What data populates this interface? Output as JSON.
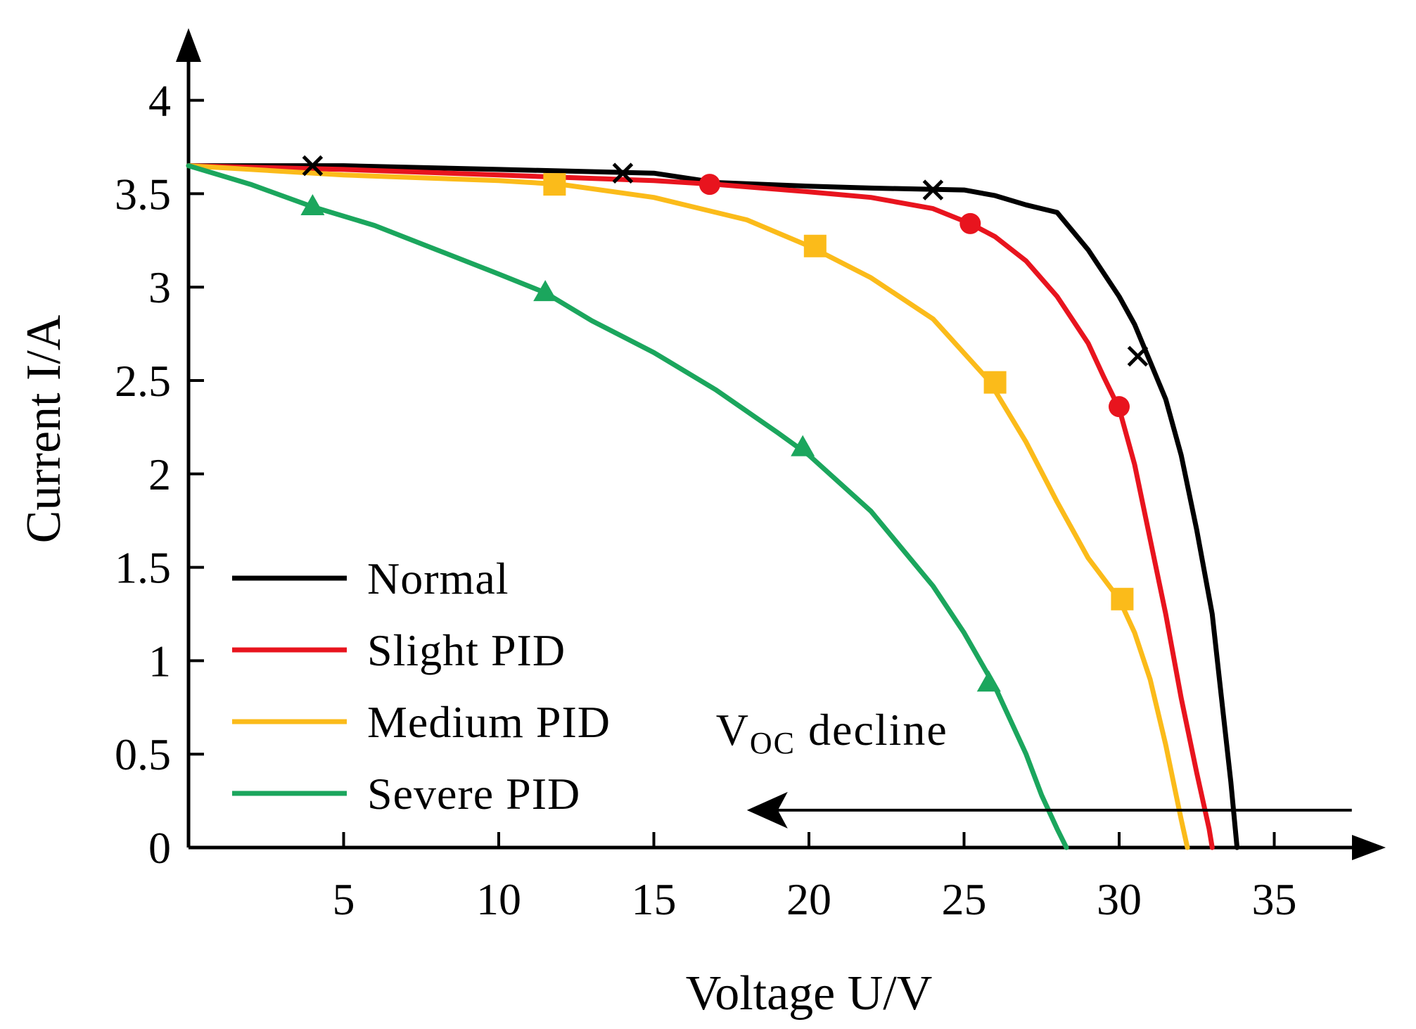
{
  "chart_data": {
    "type": "line",
    "title": "",
    "xlabel": "Voltage U/V",
    "ylabel": "Current I/A",
    "xlim": [
      0,
      38
    ],
    "ylim": [
      0,
      4.3
    ],
    "xticks": [
      5,
      10,
      15,
      20,
      25,
      30,
      35
    ],
    "xtick_labels": [
      "5",
      "10",
      "15",
      "20",
      "25",
      "30",
      "35"
    ],
    "yticks": [
      0,
      0.5,
      1,
      1.5,
      2,
      2.5,
      3,
      3.5,
      4
    ],
    "ytick_labels": [
      "0",
      "0.5",
      "1",
      "1.5",
      "2",
      "2.5",
      "3",
      "3.5",
      "4"
    ],
    "grid": false,
    "legend_position": "bottom-left",
    "series": [
      {
        "name": "Normal",
        "color": "#000000",
        "marker": "x",
        "points": [
          [
            0,
            3.65
          ],
          [
            5,
            3.65
          ],
          [
            10,
            3.63
          ],
          [
            15,
            3.61
          ],
          [
            17,
            3.56
          ],
          [
            20,
            3.54
          ],
          [
            22,
            3.53
          ],
          [
            25,
            3.52
          ],
          [
            26,
            3.49
          ],
          [
            27,
            3.44
          ],
          [
            28,
            3.4
          ],
          [
            29,
            3.2
          ],
          [
            30,
            2.95
          ],
          [
            30.5,
            2.8
          ],
          [
            31,
            2.6
          ],
          [
            31.5,
            2.4
          ],
          [
            32,
            2.1
          ],
          [
            32.5,
            1.7
          ],
          [
            33,
            1.25
          ],
          [
            33.3,
            0.8
          ],
          [
            33.6,
            0.35
          ],
          [
            33.8,
            0.0
          ]
        ],
        "markers": [
          [
            4,
            3.65
          ],
          [
            14,
            3.61
          ],
          [
            24,
            3.52
          ],
          [
            30.6,
            2.63
          ]
        ]
      },
      {
        "name": "Slight PID",
        "color": "#e8141e",
        "marker": "circle",
        "points": [
          [
            0,
            3.65
          ],
          [
            5,
            3.63
          ],
          [
            10,
            3.6
          ],
          [
            15,
            3.57
          ],
          [
            17,
            3.55
          ],
          [
            20,
            3.51
          ],
          [
            22,
            3.48
          ],
          [
            24,
            3.42
          ],
          [
            25.2,
            3.34
          ],
          [
            26,
            3.27
          ],
          [
            27,
            3.14
          ],
          [
            28,
            2.95
          ],
          [
            29,
            2.7
          ],
          [
            29.5,
            2.52
          ],
          [
            30,
            2.35
          ],
          [
            30.5,
            2.05
          ],
          [
            31,
            1.65
          ],
          [
            31.5,
            1.25
          ],
          [
            32,
            0.8
          ],
          [
            32.5,
            0.4
          ],
          [
            32.9,
            0.1
          ],
          [
            33,
            0.0
          ]
        ],
        "markers": [
          [
            16.8,
            3.55
          ],
          [
            25.2,
            3.34
          ],
          [
            30,
            2.36
          ]
        ]
      },
      {
        "name": "Medium PID",
        "color": "#fbbb1a",
        "marker": "square",
        "points": [
          [
            0,
            3.65
          ],
          [
            5,
            3.6
          ],
          [
            10,
            3.57
          ],
          [
            12,
            3.55
          ],
          [
            15,
            3.48
          ],
          [
            18,
            3.36
          ],
          [
            20,
            3.22
          ],
          [
            22,
            3.05
          ],
          [
            24,
            2.83
          ],
          [
            25.8,
            2.5
          ],
          [
            27,
            2.17
          ],
          [
            28,
            1.85
          ],
          [
            29,
            1.55
          ],
          [
            30,
            1.33
          ],
          [
            30.5,
            1.15
          ],
          [
            31,
            0.9
          ],
          [
            31.5,
            0.55
          ],
          [
            32,
            0.15
          ],
          [
            32.2,
            0.0
          ]
        ],
        "markers": [
          [
            11.8,
            3.55
          ],
          [
            20.2,
            3.22
          ],
          [
            26,
            2.49
          ],
          [
            30.1,
            1.33
          ]
        ]
      },
      {
        "name": "Severe PID",
        "color": "#1ba65d",
        "marker": "triangle",
        "points": [
          [
            0,
            3.65
          ],
          [
            2,
            3.55
          ],
          [
            4,
            3.43
          ],
          [
            6,
            3.33
          ],
          [
            8,
            3.2
          ],
          [
            10,
            3.07
          ],
          [
            11.5,
            2.97
          ],
          [
            13,
            2.82
          ],
          [
            15,
            2.65
          ],
          [
            17,
            2.45
          ],
          [
            19,
            2.22
          ],
          [
            20,
            2.1
          ],
          [
            22,
            1.8
          ],
          [
            24,
            1.4
          ],
          [
            25,
            1.15
          ],
          [
            26,
            0.86
          ],
          [
            27,
            0.5
          ],
          [
            27.5,
            0.28
          ],
          [
            28,
            0.1
          ],
          [
            28.3,
            0.0
          ]
        ],
        "markers": [
          [
            4,
            3.43
          ],
          [
            11.5,
            2.97
          ],
          [
            19.8,
            2.14
          ],
          [
            25.8,
            0.88
          ]
        ]
      }
    ],
    "annotation": {
      "text_main": "V",
      "text_sub": "OC",
      "text_rest": " decline",
      "arrow_from": 37.5,
      "arrow_to": 18,
      "arrow_y": 0.2,
      "text_x": 17,
      "text_y": 0.55
    }
  }
}
